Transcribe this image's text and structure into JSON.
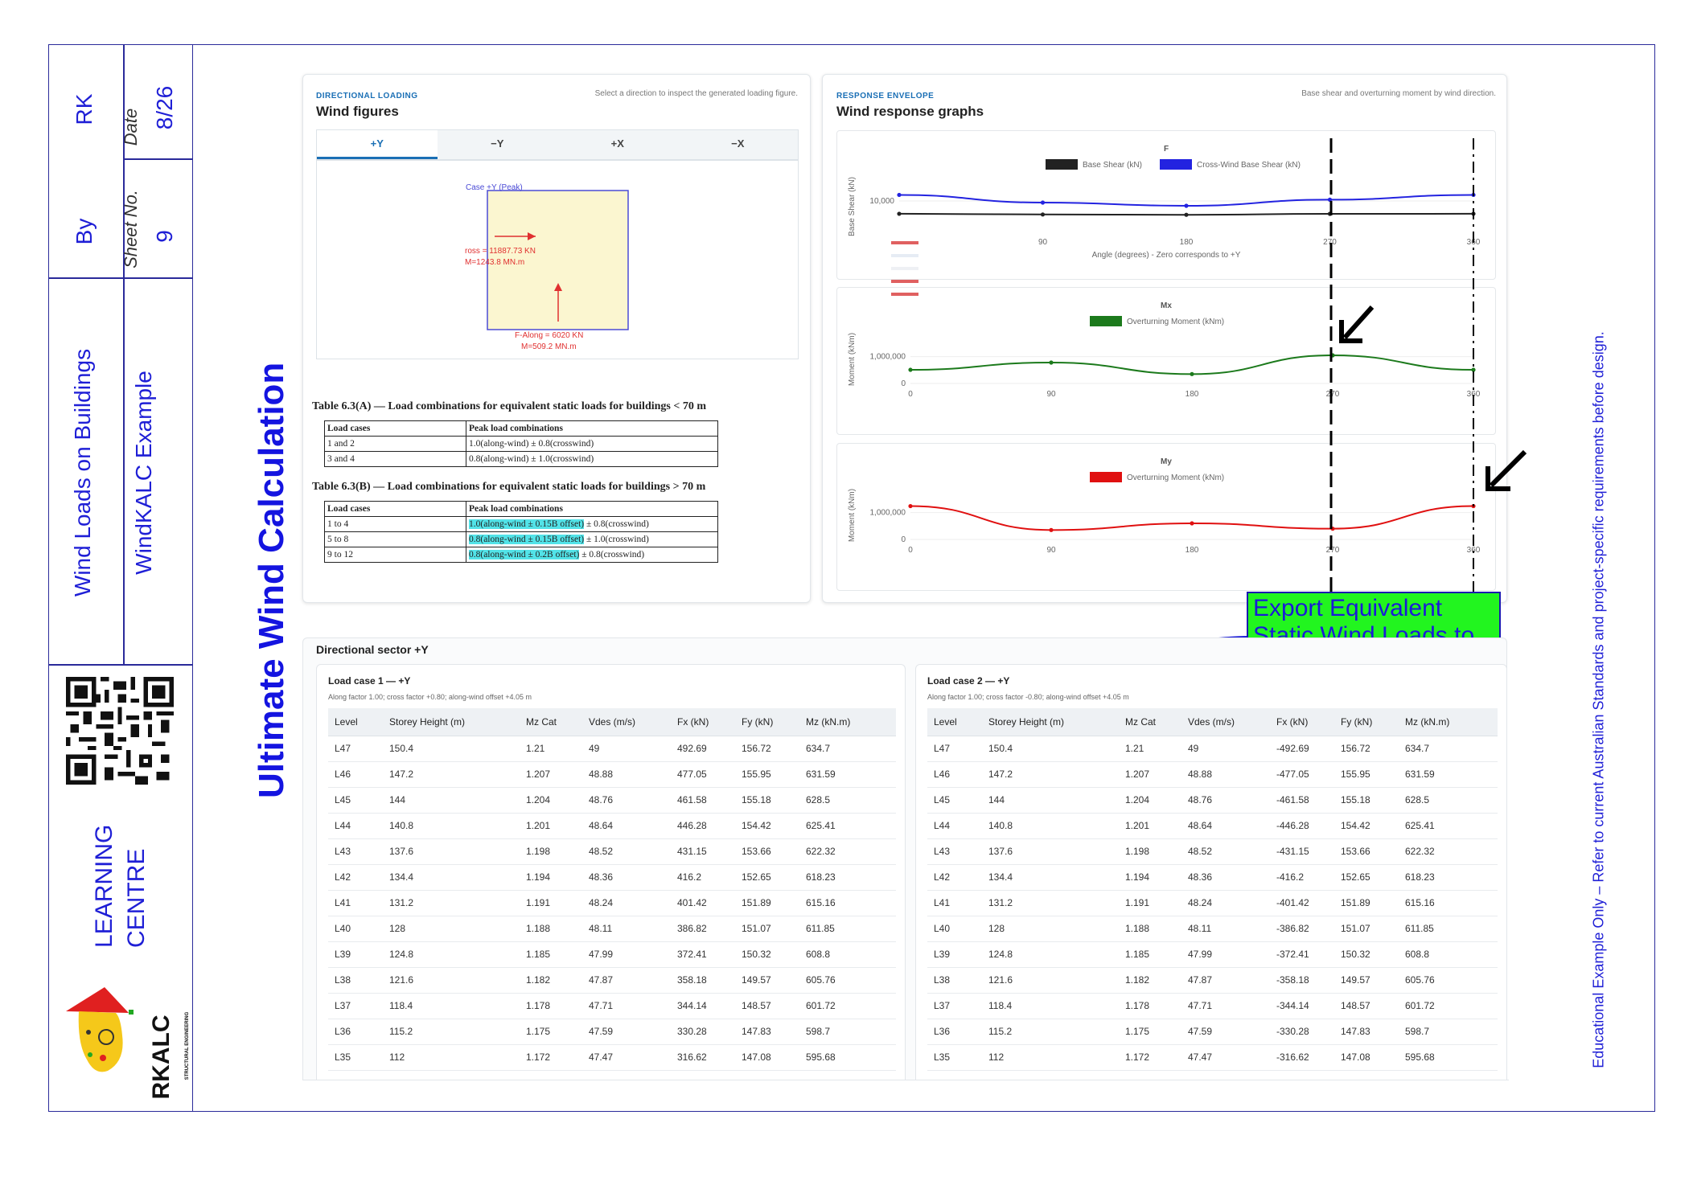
{
  "title_block": {
    "by_value": "RK",
    "by_label": "By",
    "date_label": "Date",
    "date_value": "8/26",
    "sheet_label": "Sheet No.",
    "sheet_value": "9",
    "course": "Wind Loads on Buildings",
    "example": "WindKALC Example",
    "centre": "LEARNING",
    "centre2": "CENTRE",
    "brand": "RKALC",
    "brand_sub": "STRUCTURAL ENGINEERING"
  },
  "main_title": "Ultimate Wind Calculation",
  "disclaimer": "Educational Example Only – Refer to current Australian Standards and project-specific requirements before design.",
  "wind_figures": {
    "kicker": "DIRECTIONAL LOADING",
    "title": "Wind figures",
    "hint": "Select a direction to inspect the generated loading figure.",
    "tabs": [
      "+Y",
      "−Y",
      "+X",
      "−X"
    ],
    "active_tab": 0,
    "case_label": "Case +Y (Peak)",
    "cross_force": "ross = 11887.73 KN",
    "cross_moment": "M=1243.8 MN.m",
    "along_force": "F-Along = 6020 KN",
    "along_moment": "M=509.2 MN.m"
  },
  "table_a": {
    "title": "Table 6.3(A) — Load combinations for equivalent static loads for buildings < 70 m",
    "headers": [
      "Load cases",
      "Peak load combinations"
    ],
    "rows": [
      [
        "1 and 2",
        "1.0(along-wind) ± 0.8(crosswind)"
      ],
      [
        "3 and 4",
        "0.8(along-wind) ± 1.0(crosswind)"
      ]
    ]
  },
  "table_b": {
    "title": "Table 6.3(B) — Load combinations for equivalent static loads for buildings > 70 m",
    "headers": [
      "Load cases",
      "Peak load combinations"
    ],
    "rows": [
      [
        "1 to 4",
        "1.0(along-wind ± 0.15B offset)",
        " ± 0.8(crosswind)"
      ],
      [
        "5 to 8",
        "0.8(along-wind ± 0.15B offset)",
        " ± 1.0(crosswind)"
      ],
      [
        "9 to 12",
        "0.8(along-wind ± 0.2B offset)",
        " ± 0.8(crosswind)"
      ]
    ]
  },
  "response": {
    "kicker": "RESPONSE ENVELOPE",
    "title": "Wind response graphs",
    "hint": "Base shear and overturning moment by wind direction."
  },
  "chart_data": [
    {
      "type": "line",
      "title": "F",
      "xlabel": "Angle (degrees) - Zero corresponds to +Y",
      "ylabel": "Base Shear (kN)",
      "x": [
        0,
        90,
        180,
        270,
        360
      ],
      "xticks": [
        "90",
        "180",
        "270",
        "360"
      ],
      "yticks": [
        "10,000"
      ],
      "ylim": [
        0,
        14000
      ],
      "series": [
        {
          "name": "Base Shear (kN)",
          "color": "#222222",
          "values": [
            6020,
            5800,
            5700,
            6000,
            6020
          ]
        },
        {
          "name": "Cross-Wind Base Shear (kN)",
          "color": "#2323e0",
          "values": [
            11888,
            9500,
            8500,
            10400,
            11888
          ]
        }
      ],
      "legend": "top-center"
    },
    {
      "type": "line",
      "title": "Mx",
      "xlabel": "",
      "ylabel": "Moment (kNm)",
      "x": [
        0,
        90,
        180,
        270,
        360
      ],
      "xticks": [
        "0",
        "90",
        "180",
        "270",
        "360"
      ],
      "yticks": [
        "1,000,000",
        "0"
      ],
      "ylim": [
        0,
        1500000
      ],
      "series": [
        {
          "name": "Overturning Moment (kNm)",
          "color": "#1c7a1c",
          "values": [
            509200,
            780000,
            350000,
            1050000,
            509200
          ]
        }
      ],
      "legend": "top-center"
    },
    {
      "type": "line",
      "title": "My",
      "xlabel": "",
      "ylabel": "Moment (kNm)",
      "x": [
        0,
        90,
        180,
        270,
        360
      ],
      "xticks": [
        "0",
        "90",
        "180",
        "270",
        "360"
      ],
      "yticks": [
        "1,000,000",
        "0"
      ],
      "ylim": [
        0,
        1500000
      ],
      "series": [
        {
          "name": "Overturning Moment (kNm)",
          "color": "#e01010",
          "values": [
            1243800,
            350000,
            600000,
            400000,
            1243800
          ]
        }
      ],
      "legend": "top-center"
    }
  ],
  "callout": "Export Equivalent Static Wind Loads to Excel / ETABS",
  "sector": {
    "title": "Directional sector +Y",
    "headers": [
      "Level",
      "Storey Height (m)",
      "Mz Cat",
      "Vdes (m/s)",
      "Fx (kN)",
      "Fy (kN)",
      "Mz (kN.m)"
    ],
    "lc1": {
      "title": "Load case 1 — +Y",
      "sub": "Along factor 1.00; cross factor +0.80; along-wind offset +4.05 m",
      "rows": [
        [
          "L47",
          "150.4",
          "1.21",
          "49",
          "492.69",
          "156.72",
          "634.7"
        ],
        [
          "L46",
          "147.2",
          "1.207",
          "48.88",
          "477.05",
          "155.95",
          "631.59"
        ],
        [
          "L45",
          "144",
          "1.204",
          "48.76",
          "461.58",
          "155.18",
          "628.5"
        ],
        [
          "L44",
          "140.8",
          "1.201",
          "48.64",
          "446.28",
          "154.42",
          "625.41"
        ],
        [
          "L43",
          "137.6",
          "1.198",
          "48.52",
          "431.15",
          "153.66",
          "622.32"
        ],
        [
          "L42",
          "134.4",
          "1.194",
          "48.36",
          "416.2",
          "152.65",
          "618.23"
        ],
        [
          "L41",
          "131.2",
          "1.191",
          "48.24",
          "401.42",
          "151.89",
          "615.16"
        ],
        [
          "L40",
          "128",
          "1.188",
          "48.11",
          "386.82",
          "151.07",
          "611.85"
        ],
        [
          "L39",
          "124.8",
          "1.185",
          "47.99",
          "372.41",
          "150.32",
          "608.8"
        ],
        [
          "L38",
          "121.6",
          "1.182",
          "47.87",
          "358.18",
          "149.57",
          "605.76"
        ],
        [
          "L37",
          "118.4",
          "1.178",
          "47.71",
          "344.14",
          "148.57",
          "601.72"
        ],
        [
          "L36",
          "115.2",
          "1.175",
          "47.59",
          "330.28",
          "147.83",
          "598.7"
        ],
        [
          "L35",
          "112",
          "1.172",
          "47.47",
          "316.62",
          "147.08",
          "595.68"
        ]
      ]
    },
    "lc2": {
      "title": "Load case 2 — +Y",
      "sub": "Along factor 1.00; cross factor -0.80; along-wind offset +4.05 m",
      "rows": [
        [
          "L47",
          "150.4",
          "1.21",
          "49",
          "-492.69",
          "156.72",
          "634.7"
        ],
        [
          "L46",
          "147.2",
          "1.207",
          "48.88",
          "-477.05",
          "155.95",
          "631.59"
        ],
        [
          "L45",
          "144",
          "1.204",
          "48.76",
          "-461.58",
          "155.18",
          "628.5"
        ],
        [
          "L44",
          "140.8",
          "1.201",
          "48.64",
          "-446.28",
          "154.42",
          "625.41"
        ],
        [
          "L43",
          "137.6",
          "1.198",
          "48.52",
          "-431.15",
          "153.66",
          "622.32"
        ],
        [
          "L42",
          "134.4",
          "1.194",
          "48.36",
          "-416.2",
          "152.65",
          "618.23"
        ],
        [
          "L41",
          "131.2",
          "1.191",
          "48.24",
          "-401.42",
          "151.89",
          "615.16"
        ],
        [
          "L40",
          "128",
          "1.188",
          "48.11",
          "-386.82",
          "151.07",
          "611.85"
        ],
        [
          "L39",
          "124.8",
          "1.185",
          "47.99",
          "-372.41",
          "150.32",
          "608.8"
        ],
        [
          "L38",
          "121.6",
          "1.182",
          "47.87",
          "-358.18",
          "149.57",
          "605.76"
        ],
        [
          "L37",
          "118.4",
          "1.178",
          "47.71",
          "-344.14",
          "148.57",
          "601.72"
        ],
        [
          "L36",
          "115.2",
          "1.175",
          "47.59",
          "-330.28",
          "147.83",
          "598.7"
        ],
        [
          "L35",
          "112",
          "1.172",
          "47.47",
          "-316.62",
          "147.08",
          "595.68"
        ]
      ]
    }
  }
}
